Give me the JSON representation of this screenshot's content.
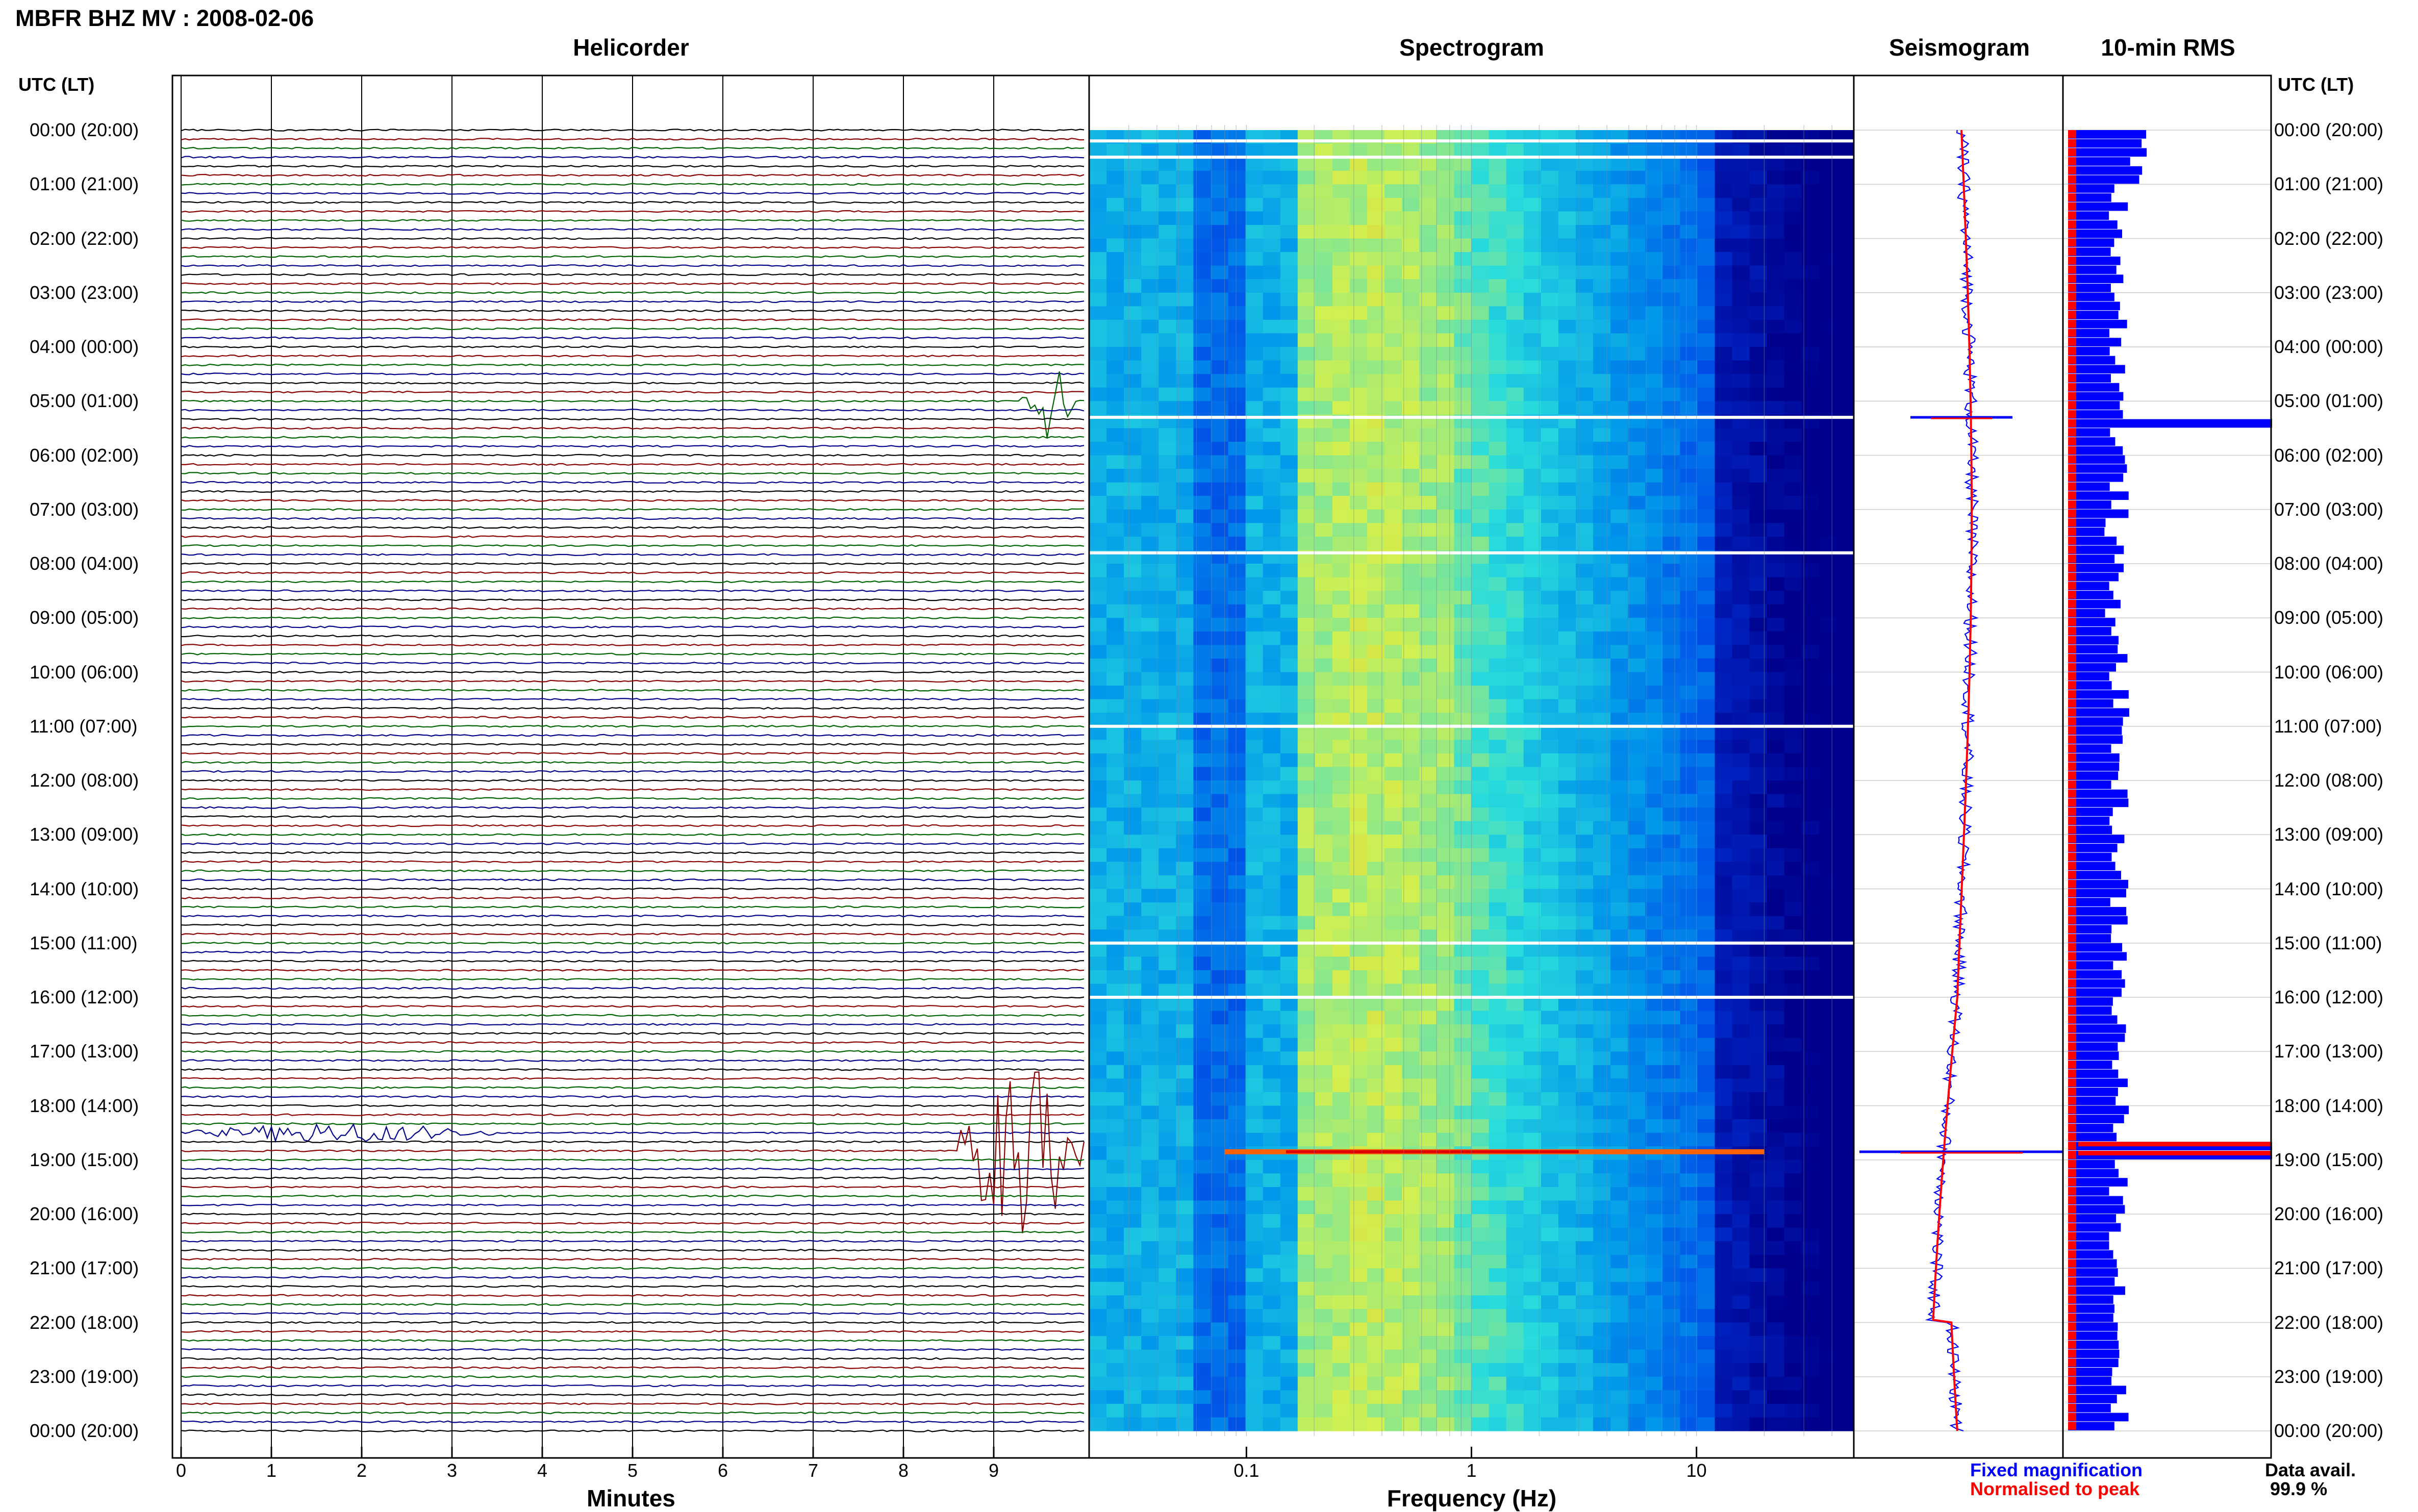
{
  "header": {
    "title": "MBFR BHZ MV : 2008-02-06"
  },
  "panels": {
    "helicorder": "Helicorder",
    "spectrogram": "Spectrogram",
    "seismogram": "Seismogram",
    "rms": "10-min RMS"
  },
  "axis_header": {
    "left": "UTC (LT)",
    "right": "UTC (LT)"
  },
  "hour_labels": [
    "00:00 (20:00)",
    "01:00 (21:00)",
    "02:00 (22:00)",
    "03:00 (23:00)",
    "04:00 (00:00)",
    "05:00 (01:00)",
    "06:00 (02:00)",
    "07:00 (03:00)",
    "08:00 (04:00)",
    "09:00 (05:00)",
    "10:00 (06:00)",
    "11:00 (07:00)",
    "12:00 (08:00)",
    "13:00 (09:00)",
    "14:00 (10:00)",
    "15:00 (11:00)",
    "16:00 (12:00)",
    "17:00 (13:00)",
    "18:00 (14:00)",
    "19:00 (15:00)",
    "20:00 (16:00)",
    "21:00 (17:00)",
    "22:00 (18:00)",
    "23:00 (19:00)",
    "00:00 (20:00)"
  ],
  "legend": {
    "fixed": "Fixed magnification",
    "normalised": "Normalised to peak",
    "avail_label": "Data avail.",
    "avail_value": "99.9 %"
  },
  "colors": {
    "trace_cycle": [
      "#000000",
      "#8b0000",
      "#006400",
      "#00008b"
    ],
    "seismogram_fixed": "#0000ff",
    "seismogram_normalised": "#ff0000",
    "rms_bar": "#0000ff",
    "rms_peak": "#ff0000"
  },
  "chart_data": [
    {
      "type": "line",
      "title": "Helicorder",
      "xlabel": "Minutes",
      "xticks": [
        "0",
        "1",
        "2",
        "3",
        "4",
        "5",
        "6",
        "7",
        "8",
        "9"
      ],
      "xlim": [
        0,
        10
      ],
      "rows_per_hour": 6,
      "row_range": [
        0,
        24
      ],
      "events": [
        {
          "row": 5.0,
          "start_min": 9.3,
          "end_min": 9.9,
          "amp": 5.5
        },
        {
          "row": 18.5,
          "start_min": 0.0,
          "end_min": 3.5,
          "amp": 1.3
        },
        {
          "row": 18.8,
          "start_min": 8.6,
          "end_min": 10.0,
          "amp": 12.0
        }
      ]
    },
    {
      "type": "heatmap",
      "title": "Spectrogram",
      "xlabel": "Frequency (Hz)",
      "xscale": "log",
      "xlim": [
        0.02,
        50
      ],
      "xticks": [
        "0.1",
        "1",
        "10"
      ],
      "xtick_values": [
        0.1,
        1,
        10
      ],
      "peak_band_hz": [
        0.15,
        0.8
      ],
      "gap_rows": [
        0.2,
        0.5,
        5.3,
        7.8,
        11.0,
        15.0,
        16.0
      ],
      "event_row": 18.85
    },
    {
      "type": "line",
      "title": "Seismogram",
      "series": [
        {
          "name": "Fixed magnification"
        },
        {
          "name": "Normalised to peak"
        }
      ],
      "spikes": [
        {
          "row": 5.3
        },
        {
          "row": 18.85
        }
      ]
    },
    {
      "type": "bar",
      "title": "10-min RMS",
      "orientation": "horizontal",
      "high_rows": [
        5.3,
        18.7,
        18.85
      ],
      "series": [
        {
          "name": "10-min RMS"
        }
      ]
    }
  ]
}
